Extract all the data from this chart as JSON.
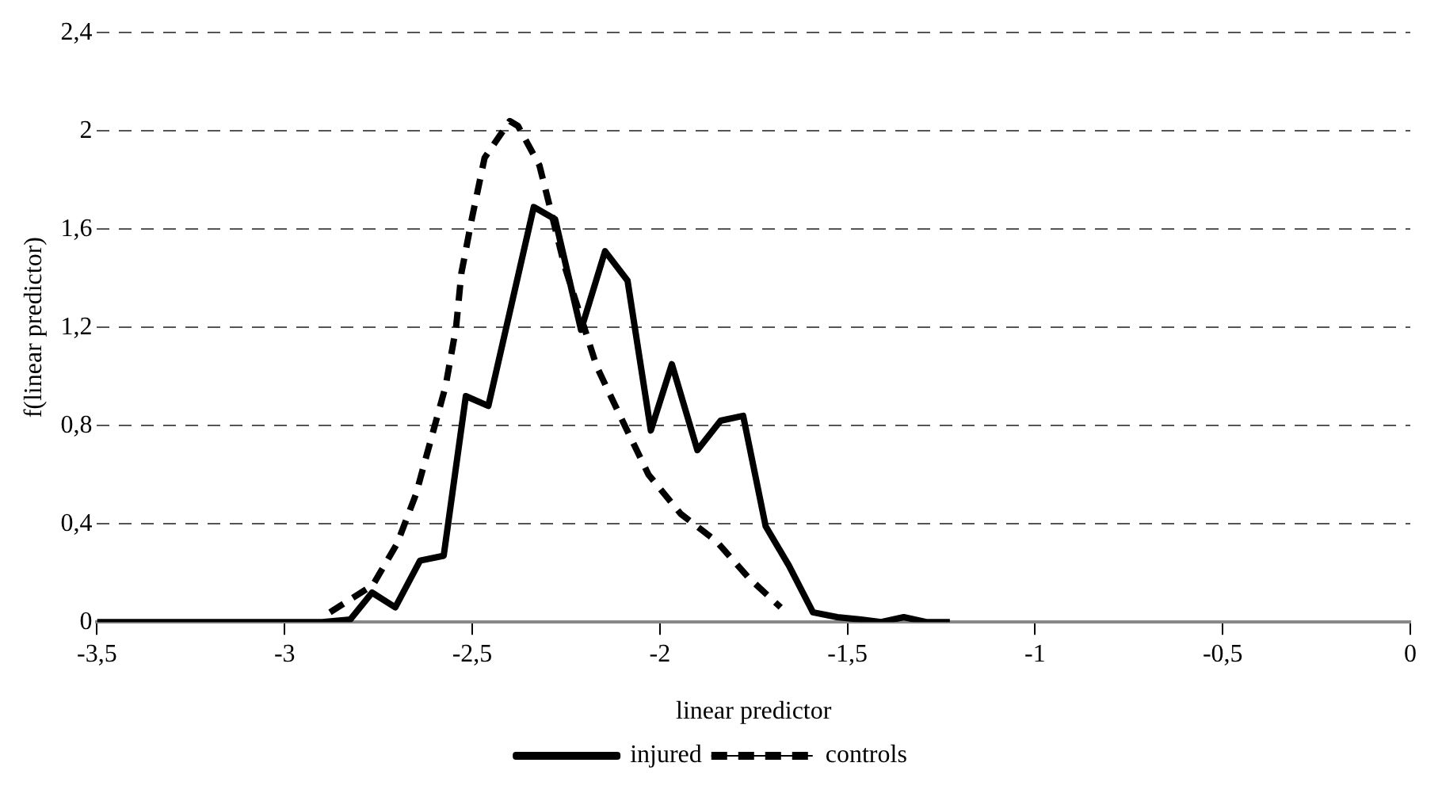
{
  "chart_data": {
    "type": "line",
    "xlabel": "linear predictor",
    "ylabel": "f(linear predictor)",
    "xlim": [
      -3.5,
      0
    ],
    "xticks": [
      {
        "value": -3.5,
        "label": "-3,5"
      },
      -3,
      {
        "value": -2.5,
        "label": "-2,5"
      },
      -2,
      {
        "value": -1.5,
        "label": "-1,5"
      },
      -1,
      {
        "value": -0.5,
        "label": "-0,5"
      },
      0
    ],
    "ylim": [
      0,
      2.4
    ],
    "yticks": [
      0,
      {
        "value": 0.4,
        "label": "0,4"
      },
      {
        "value": 0.8,
        "label": "0,8"
      },
      {
        "value": 1.2,
        "label": "1,2"
      },
      {
        "value": 1.6,
        "label": "1,6"
      },
      2,
      {
        "value": 2.4,
        "label": "2,4"
      }
    ],
    "grid": "y",
    "legend": "bottom",
    "marker": "none",
    "series": [
      {
        "name": "injured",
        "color": "#000000",
        "line_style": "solid",
        "x": [
          -3.5,
          -3.4,
          -3.3,
          -3.2,
          -3.1,
          -3.0,
          -2.9,
          -2.825,
          -2.767,
          -2.705,
          -2.639,
          -2.576,
          -2.517,
          -2.457,
          -2.336,
          -2.279,
          -2.21,
          -2.146,
          -2.086,
          -2.024,
          -1.968,
          -1.9,
          -1.838,
          -1.778,
          -1.718,
          -1.656,
          -1.592,
          -1.527,
          -1.464,
          -1.41,
          -1.35,
          -1.29,
          -1.227
        ],
        "values": [
          0,
          0,
          0,
          0,
          0,
          0,
          0,
          0.01,
          0.12,
          0.06,
          0.25,
          0.27,
          0.92,
          0.88,
          1.69,
          1.64,
          1.19,
          1.51,
          1.39,
          0.78,
          1.05,
          0.7,
          0.82,
          0.84,
          0.39,
          0.23,
          0.04,
          0.02,
          0.01,
          0,
          0.02,
          0,
          0
        ]
      },
      {
        "name": "controls",
        "color": "#000000",
        "line_style": "dashed",
        "x": [
          -2.879,
          -2.765,
          -2.7,
          -2.65,
          -2.607,
          -2.571,
          -2.543,
          -2.529,
          -2.5,
          -2.467,
          -2.4,
          -2.378,
          -2.321,
          -2.293,
          -2.254,
          -2.168,
          -2.106,
          -2.03,
          -1.944,
          -1.85,
          -1.763,
          -1.678
        ],
        "values": [
          0.04,
          0.15,
          0.32,
          0.52,
          0.76,
          0.96,
          1.2,
          1.42,
          1.65,
          1.89,
          2.04,
          2.02,
          1.86,
          1.69,
          1.45,
          1.04,
          0.84,
          0.6,
          0.44,
          0.33,
          0.18,
          0.06
        ]
      }
    ]
  }
}
